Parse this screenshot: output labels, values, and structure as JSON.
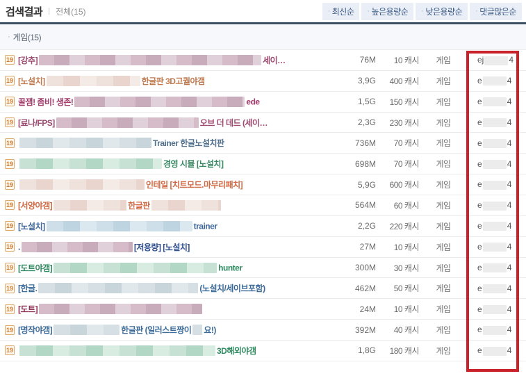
{
  "header": {
    "title": "검색결과",
    "separator": "|",
    "scope": "전체(15)"
  },
  "sort": {
    "bullet": "·",
    "buttons": [
      "최신순",
      "높은용량순",
      "낮은용량순",
      "댓글많은순"
    ]
  },
  "section": {
    "bullet": "·",
    "label": "게임(15)"
  },
  "highlight_color": "#c9222a",
  "table": {
    "rows": [
      {
        "badge": "19",
        "color": "#9c4a70",
        "tone": "pink",
        "parts": [
          {
            "t": "[강추]"
          },
          {
            "b": 320
          },
          {
            "t": "세이…"
          }
        ],
        "size": "76M",
        "cache": "10 캐시",
        "category": "게임",
        "up_pre": "ej",
        "up_suf": "4"
      },
      {
        "badge": "19",
        "color": "#c07a4e",
        "tone": "beige",
        "parts": [
          {
            "t": "[노설치]"
          },
          {
            "b": 135
          },
          {
            "t": "한글판 3D고퀄야갬"
          }
        ],
        "size": "3,9G",
        "cache": "400 캐시",
        "category": "게임",
        "up_pre": "e",
        "up_suf": "4"
      },
      {
        "badge": "19",
        "color": "#a33b6b",
        "tone": "pink",
        "parts": [
          {
            "t": "꿀잼! 좀비! 생존!"
          },
          {
            "b": 245
          },
          {
            "t": "ede"
          }
        ],
        "size": "1,5G",
        "cache": "150 캐시",
        "category": "게임",
        "up_pre": "e",
        "up_suf": "4"
      },
      {
        "badge": "19",
        "color": "#9c4a70",
        "tone": "pink",
        "parts": [
          {
            "t": "[료나/FPS]"
          },
          {
            "b": 205
          },
          {
            "t": "오브 더 데드 (세이…"
          }
        ],
        "size": "2,3G",
        "cache": "230 캐시",
        "category": "게임",
        "up_pre": "e",
        "up_suf": "4"
      },
      {
        "badge": "19",
        "color": "#51708d",
        "tone": "bluegray",
        "parts": [
          {
            "b": 190
          },
          {
            "t": "Trainer 한글노설치판"
          }
        ],
        "size": "736M",
        "cache": "70 캐시",
        "category": "게임",
        "up_pre": "e",
        "up_suf": "4"
      },
      {
        "badge": "19",
        "color": "#3b8a65",
        "tone": "green",
        "parts": [
          {
            "b": 205
          },
          {
            "t": "경영 시뮬 [노설치]"
          }
        ],
        "size": "698M",
        "cache": "70 캐시",
        "category": "게임",
        "up_pre": "e",
        "up_suf": "4"
      },
      {
        "badge": "19",
        "color": "#cf6a45",
        "tone": "beige",
        "parts": [
          {
            "b": 180
          },
          {
            "t": "인테일 [치트모드.마무리패치]"
          }
        ],
        "size": "5,9G",
        "cache": "600 캐시",
        "category": "게임",
        "up_pre": "e",
        "up_suf": "4"
      },
      {
        "badge": "19",
        "color": "#cf6a45",
        "tone": "beige",
        "parts": [
          {
            "t": "[서양야갬]"
          },
          {
            "b": 105
          },
          {
            "t": "한글판"
          },
          {
            "b": 100
          }
        ],
        "size": "564M",
        "cache": "60 캐시",
        "category": "게임",
        "up_pre": "e",
        "up_suf": "4"
      },
      {
        "badge": "19",
        "color": "#41689c",
        "tone": "blue",
        "parts": [
          {
            "t": "[노설치]"
          },
          {
            "b": 210
          },
          {
            "t": "trainer"
          }
        ],
        "size": "2,2G",
        "cache": "220 캐시",
        "category": "게임",
        "up_pre": "e",
        "up_suf": "4"
      },
      {
        "badge": "19",
        "color": "#2f4f8f",
        "tone": "pink",
        "parts": [
          {
            "t": "."
          },
          {
            "b": 160
          },
          {
            "t": "[저용량] [노설치]"
          }
        ],
        "size": "27M",
        "cache": "10 캐시",
        "category": "게임",
        "up_pre": "e",
        "up_suf": "4"
      },
      {
        "badge": "19",
        "color": "#2f8a60",
        "tone": "green",
        "parts": [
          {
            "t": "[도트야갬]"
          },
          {
            "b": 235
          },
          {
            "t": "hunter"
          }
        ],
        "size": "300M",
        "cache": "30 캐시",
        "category": "게임",
        "up_pre": "e",
        "up_suf": "4"
      },
      {
        "badge": "19",
        "color": "#3c6b9a",
        "tone": "bluegray",
        "parts": [
          {
            "t": "[한글."
          },
          {
            "b": 230
          },
          {
            "t": "(노설치/세이브포함)"
          }
        ],
        "size": "462M",
        "cache": "50 캐시",
        "category": "게임",
        "up_pre": "e",
        "up_suf": "4"
      },
      {
        "badge": "19",
        "color": "#8e2f52",
        "tone": "pink",
        "parts": [
          {
            "t": "[도트]"
          },
          {
            "b": 235
          }
        ],
        "size": "24M",
        "cache": "10 캐시",
        "category": "게임",
        "up_pre": "e",
        "up_suf": "4"
      },
      {
        "badge": "19",
        "color": "#3c6b9a",
        "tone": "bluegray",
        "parts": [
          {
            "t": "[명작야갬]"
          },
          {
            "b": 95
          },
          {
            "t": "한글판 (일러스트짱이"
          },
          {
            "b": 14
          },
          {
            "t": "요!)"
          }
        ],
        "size": "392M",
        "cache": "40 캐시",
        "category": "게임",
        "up_pre": "e",
        "up_suf": "4"
      },
      {
        "badge": "19",
        "color": "#2f8a60",
        "tone": "green",
        "parts": [
          {
            "b": 282
          },
          {
            "t": "3D해외야갬"
          }
        ],
        "size": "1,8G",
        "cache": "180 캐시",
        "category": "게임",
        "up_pre": "e",
        "up_suf": "4"
      }
    ]
  }
}
